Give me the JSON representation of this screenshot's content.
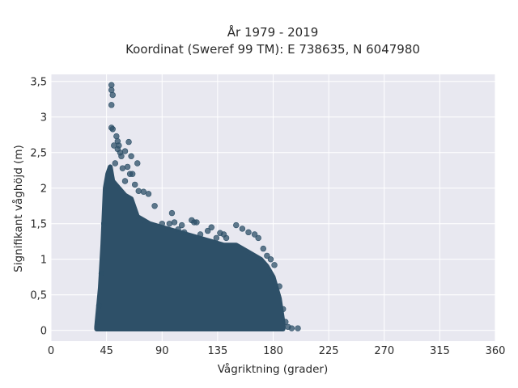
{
  "chart_data": {
    "type": "scatter",
    "title_line1": "År 1979 - 2019",
    "title_line2": "Koordinat (Sweref 99 TM): E 738635, N 6047980",
    "xlabel": "Vågriktning (grader)",
    "ylabel": "Signifikant våghöjd (m)",
    "xlim": [
      0,
      360
    ],
    "ylim": [
      -0.15,
      3.6
    ],
    "xticks": [
      0,
      45,
      90,
      135,
      180,
      225,
      270,
      315,
      360
    ],
    "xtick_labels": [
      "0",
      "45",
      "90",
      "135",
      "180",
      "225",
      "270",
      "315",
      "360"
    ],
    "yticks": [
      0,
      0.5,
      1,
      1.5,
      2,
      2.5,
      3,
      3.5
    ],
    "ytick_labels": [
      "0",
      "0,5",
      "1",
      "1,5",
      "2",
      "2,5",
      "3",
      "3,5"
    ],
    "grid": true,
    "legend": "none",
    "colors": {
      "marker": "#2e5068",
      "plot_bg": "#e8e8f0",
      "grid": "#ffffff"
    },
    "dense_region": {
      "x_min": 37,
      "x_max": 188,
      "envelope": [
        [
          37,
          0.05
        ],
        [
          40,
          0.6
        ],
        [
          42,
          1.2
        ],
        [
          44,
          2.0
        ],
        [
          46,
          2.2
        ],
        [
          48,
          2.3
        ],
        [
          50,
          2.1
        ],
        [
          55,
          2.0
        ],
        [
          60,
          1.9
        ],
        [
          65,
          1.85
        ],
        [
          70,
          1.6
        ],
        [
          75,
          1.55
        ],
        [
          80,
          1.5
        ],
        [
          90,
          1.45
        ],
        [
          100,
          1.4
        ],
        [
          110,
          1.35
        ],
        [
          120,
          1.3
        ],
        [
          130,
          1.25
        ],
        [
          140,
          1.2
        ],
        [
          150,
          1.2
        ],
        [
          160,
          1.1
        ],
        [
          170,
          1.0
        ],
        [
          175,
          0.9
        ],
        [
          180,
          0.75
        ],
        [
          185,
          0.45
        ],
        [
          188,
          0.1
        ]
      ]
    },
    "points": [
      [
        49,
        3.45
      ],
      [
        49,
        3.38
      ],
      [
        50,
        3.31
      ],
      [
        49,
        3.17
      ],
      [
        49,
        2.85
      ],
      [
        50,
        2.83
      ],
      [
        53,
        2.73
      ],
      [
        54,
        2.66
      ],
      [
        55,
        2.6
      ],
      [
        51,
        2.6
      ],
      [
        54,
        2.55
      ],
      [
        56,
        2.5
      ],
      [
        60,
        2.52
      ],
      [
        63,
        2.65
      ],
      [
        65,
        2.45
      ],
      [
        57,
        2.45
      ],
      [
        52,
        2.35
      ],
      [
        70,
        2.35
      ],
      [
        62,
        2.3
      ],
      [
        64,
        2.2
      ],
      [
        66,
        2.2
      ],
      [
        58,
        2.28
      ],
      [
        60,
        2.1
      ],
      [
        68,
        2.05
      ],
      [
        71,
        1.96
      ],
      [
        75,
        1.95
      ],
      [
        79,
        1.92
      ],
      [
        84,
        1.75
      ],
      [
        90,
        1.5
      ],
      [
        96,
        1.5
      ],
      [
        98,
        1.65
      ],
      [
        100,
        1.52
      ],
      [
        103,
        1.42
      ],
      [
        106,
        1.48
      ],
      [
        108,
        1.38
      ],
      [
        114,
        1.55
      ],
      [
        116,
        1.52
      ],
      [
        118,
        1.52
      ],
      [
        121,
        1.35
      ],
      [
        127,
        1.4
      ],
      [
        130,
        1.45
      ],
      [
        134,
        1.3
      ],
      [
        137,
        1.37
      ],
      [
        140,
        1.35
      ],
      [
        142,
        1.3
      ],
      [
        150,
        1.48
      ],
      [
        155,
        1.43
      ],
      [
        160,
        1.38
      ],
      [
        165,
        1.35
      ],
      [
        168,
        1.3
      ],
      [
        172,
        1.15
      ],
      [
        175,
        1.05
      ],
      [
        178,
        1.0
      ],
      [
        181,
        0.92
      ],
      [
        185,
        0.62
      ],
      [
        188,
        0.3
      ],
      [
        192,
        0.05
      ],
      [
        195,
        0.03
      ],
      [
        200,
        0.03
      ],
      [
        190,
        0.12
      ],
      [
        38,
        0.12
      ],
      [
        39,
        0.35
      ],
      [
        41,
        0.8
      ],
      [
        43,
        1.5
      ]
    ]
  }
}
